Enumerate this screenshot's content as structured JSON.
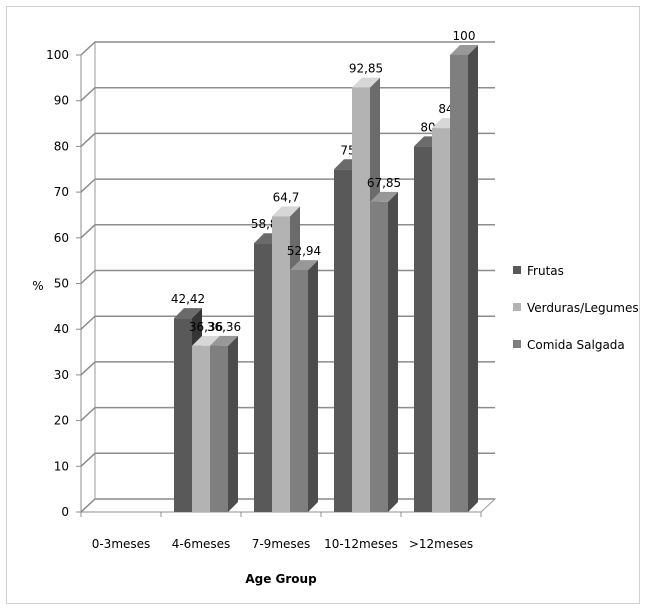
{
  "chart_data": {
    "type": "bar",
    "style": "3d-clustered-column",
    "title": "",
    "xlabel": "Age Group",
    "ylabel": "%",
    "ylim": [
      0,
      100
    ],
    "ytick_step": 10,
    "grid": true,
    "legend_position": "right",
    "categories": [
      "0-3meses",
      "4-6meses",
      "7-9meses",
      "10-12meses",
      ">12meses"
    ],
    "series": [
      {
        "name": "Frutas",
        "color": "#595959",
        "values": [
          null,
          42.42,
          58.82,
          75,
          80
        ],
        "labels": [
          "",
          "42,42",
          "58,82",
          "75",
          "80"
        ]
      },
      {
        "name": "Verduras/Legumes",
        "color": "#b3b3b3",
        "values": [
          null,
          36.36,
          64.7,
          92.85,
          84
        ],
        "labels": [
          "",
          "36,36",
          "64,7",
          "92,85",
          "84"
        ]
      },
      {
        "name": "Comida Salgada",
        "color": "#7f7f7f",
        "values": [
          null,
          36.36,
          52.94,
          67.85,
          100
        ],
        "labels": [
          "",
          "36,36",
          "52,94",
          "67,85",
          "100"
        ]
      }
    ]
  }
}
